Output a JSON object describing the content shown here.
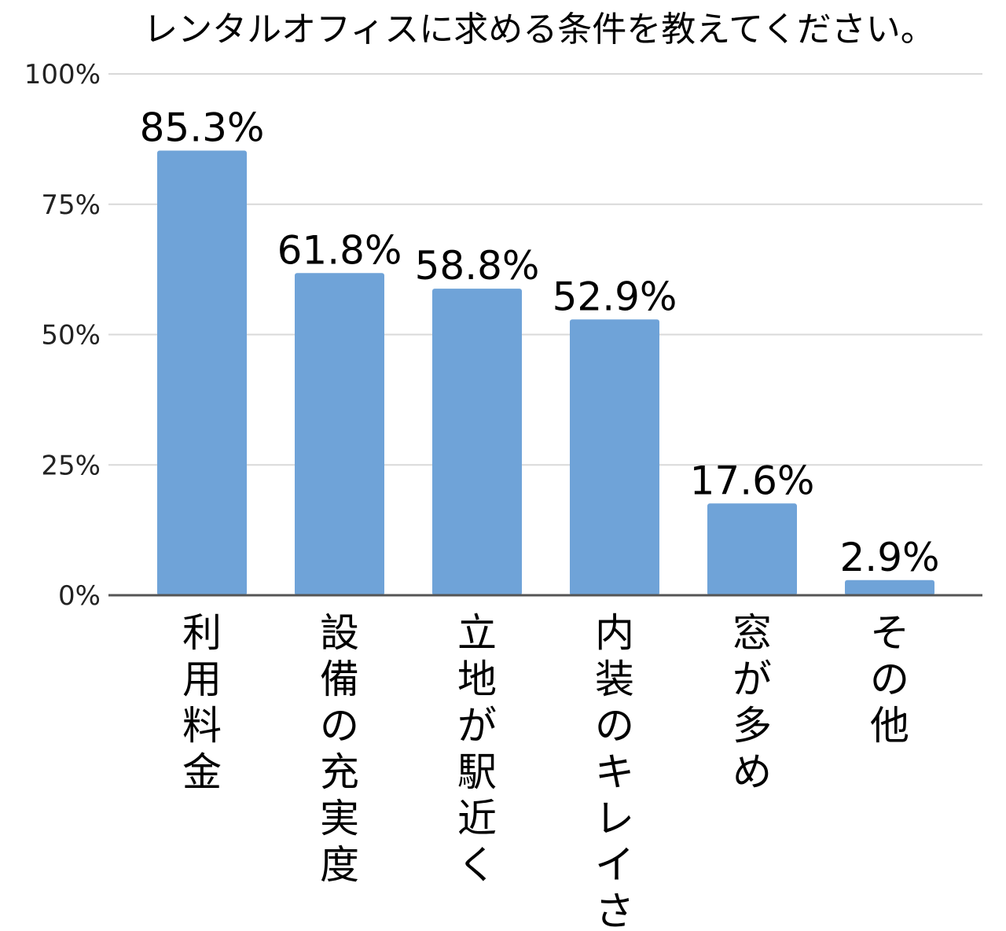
{
  "chart_data": {
    "type": "bar",
    "title": "レンタルオフィスに求める条件を教えてください。",
    "xlabel": "",
    "ylabel": "",
    "ylim": [
      0,
      100
    ],
    "yticks": [
      "0%",
      "25%",
      "50%",
      "75%",
      "100%"
    ],
    "grid": true,
    "bar_color": "#6fa3d8",
    "categories": [
      "利用料金",
      "設備の充実度",
      "立地が駅近く",
      "内装のキレイさ",
      "窓が多め",
      "その他"
    ],
    "values": [
      85.3,
      61.8,
      58.8,
      52.9,
      17.6,
      2.9
    ],
    "data_labels": [
      "85.3%",
      "61.8%",
      "58.8%",
      "52.9%",
      "17.6%",
      "2.9%"
    ]
  }
}
